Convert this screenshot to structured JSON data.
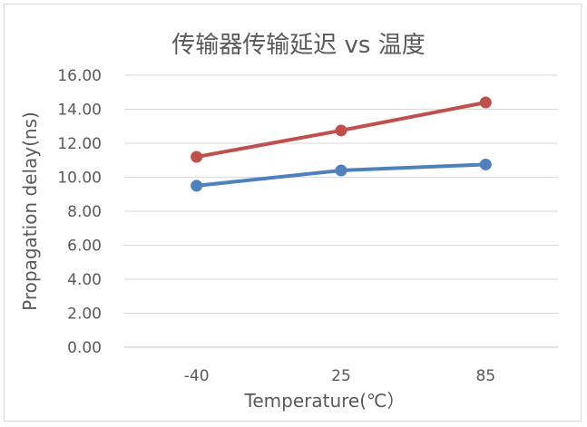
{
  "chart_data": {
    "type": "line",
    "title": "传输器传输延迟 vs 温度",
    "xlabel": "Temperature(℃）",
    "ylabel": "Propagation delay(ns)",
    "categories": [
      "-40",
      "25",
      "85"
    ],
    "ylim": [
      0,
      16
    ],
    "ytick_step": 2,
    "ytick_labels": [
      "0.00",
      "2.00",
      "4.00",
      "6.00",
      "8.00",
      "10.00",
      "12.00",
      "14.00",
      "16.00"
    ],
    "grid": true,
    "series": [
      {
        "values": [
          9.5,
          10.4,
          10.75
        ],
        "color": "#4f81bd"
      },
      {
        "values": [
          11.2,
          12.75,
          14.4
        ],
        "color": "#c0504d"
      }
    ]
  }
}
